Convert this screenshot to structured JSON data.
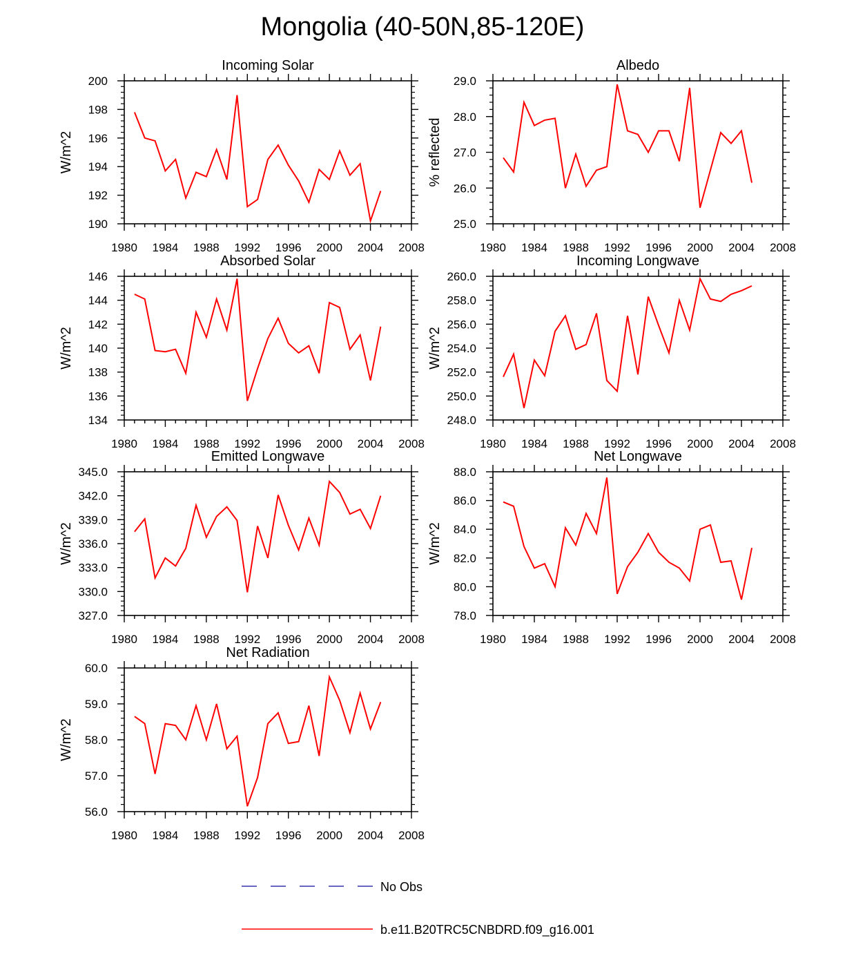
{
  "title": "Mongolia (40-50N,85-120E)",
  "colors": {
    "model_line": "#ff0000",
    "obs_line": "#3333aa",
    "axis": "#000000"
  },
  "legend": [
    {
      "label": "No Obs",
      "style": "dashed",
      "color": "#3333aa"
    },
    {
      "label": "b.e11.B20TRC5CNBDRD.f09_g16.001",
      "style": "solid",
      "color": "#ff0000"
    }
  ],
  "chart_data": [
    {
      "type": "line",
      "title": "Incoming Solar",
      "ylabel": "W/m^2",
      "xlim": [
        1980,
        2008
      ],
      "ylim": [
        190,
        200
      ],
      "xticks": [
        "1980",
        "1984",
        "1988",
        "1992",
        "1996",
        "2000",
        "2004",
        "2008"
      ],
      "yticks": [
        "190",
        "192",
        "194",
        "196",
        "198",
        "200"
      ],
      "x": [
        1981,
        1982,
        1983,
        1984,
        1985,
        1986,
        1987,
        1988,
        1989,
        1990,
        1991,
        1992,
        1993,
        1994,
        1995,
        1996,
        1997,
        1998,
        1999,
        2000,
        2001,
        2002,
        2003,
        2004,
        2005
      ],
      "series": [
        {
          "name": "b.e11.B20TRC5CNBDRD.f09_g16.001",
          "values": [
            197.8,
            196.0,
            195.8,
            193.7,
            194.5,
            191.8,
            193.6,
            193.3,
            195.2,
            193.1,
            199.0,
            191.2,
            191.7,
            194.5,
            195.5,
            194.1,
            193.0,
            191.5,
            193.8,
            193.1,
            195.1,
            193.4,
            194.2,
            190.2,
            192.3
          ]
        }
      ]
    },
    {
      "type": "line",
      "title": "Albedo",
      "ylabel": "% reflected",
      "xlim": [
        1980,
        2008
      ],
      "ylim": [
        25.0,
        29.0
      ],
      "xticks": [
        "1980",
        "1984",
        "1988",
        "1992",
        "1996",
        "2000",
        "2004",
        "2008"
      ],
      "yticks": [
        "25.0",
        "26.0",
        "27.0",
        "28.0",
        "29.0"
      ],
      "x": [
        1981,
        1982,
        1983,
        1984,
        1985,
        1986,
        1987,
        1988,
        1989,
        1990,
        1991,
        1992,
        1993,
        1994,
        1995,
        1996,
        1997,
        1998,
        1999,
        2000,
        2001,
        2002,
        2003,
        2004,
        2005
      ],
      "series": [
        {
          "name": "b.e11.B20TRC5CNBDRD.f09_g16.001",
          "values": [
            26.85,
            26.45,
            28.4,
            27.75,
            27.9,
            27.95,
            26.0,
            26.95,
            26.05,
            26.5,
            26.6,
            28.9,
            27.6,
            27.5,
            27.0,
            27.6,
            27.6,
            26.75,
            28.8,
            25.45,
            26.5,
            27.55,
            27.25,
            27.6,
            26.15
          ]
        }
      ]
    },
    {
      "type": "line",
      "title": "Absorbed Solar",
      "ylabel": "W/m^2",
      "xlim": [
        1980,
        2008
      ],
      "ylim": [
        134,
        146
      ],
      "xticks": [
        "1980",
        "1984",
        "1988",
        "1992",
        "1996",
        "2000",
        "2004",
        "2008"
      ],
      "yticks": [
        "134",
        "136",
        "138",
        "140",
        "142",
        "144",
        "146"
      ],
      "x": [
        1981,
        1982,
        1983,
        1984,
        1985,
        1986,
        1987,
        1988,
        1989,
        1990,
        1991,
        1992,
        1993,
        1994,
        1995,
        1996,
        1997,
        1998,
        1999,
        2000,
        2001,
        2002,
        2003,
        2004,
        2005
      ],
      "series": [
        {
          "name": "b.e11.B20TRC5CNBDRD.f09_g16.001",
          "values": [
            144.5,
            144.1,
            139.8,
            139.7,
            139.9,
            137.9,
            143.0,
            140.9,
            144.1,
            141.5,
            145.8,
            135.6,
            138.3,
            140.8,
            142.5,
            140.4,
            139.6,
            140.2,
            137.9,
            143.8,
            143.4,
            139.9,
            141.1,
            137.3,
            141.8
          ]
        }
      ]
    },
    {
      "type": "line",
      "title": "Incoming Longwave",
      "ylabel": "W/m^2",
      "xlim": [
        1980,
        2008
      ],
      "ylim": [
        248.0,
        260.0
      ],
      "xticks": [
        "1980",
        "1984",
        "1988",
        "1992",
        "1996",
        "2000",
        "2004",
        "2008"
      ],
      "yticks": [
        "248.0",
        "250.0",
        "252.0",
        "254.0",
        "256.0",
        "258.0",
        "260.0"
      ],
      "x": [
        1981,
        1982,
        1983,
        1984,
        1985,
        1986,
        1987,
        1988,
        1989,
        1990,
        1991,
        1992,
        1993,
        1994,
        1995,
        1996,
        1997,
        1998,
        1999,
        2000,
        2001,
        2002,
        2003,
        2004,
        2005
      ],
      "series": [
        {
          "name": "b.e11.B20TRC5CNBDRD.f09_g16.001",
          "values": [
            251.6,
            253.5,
            249.0,
            253.0,
            251.7,
            255.4,
            256.7,
            253.9,
            254.3,
            256.9,
            251.3,
            250.4,
            256.7,
            251.8,
            258.3,
            255.9,
            253.6,
            258.0,
            255.5,
            259.8,
            258.1,
            257.9,
            258.5,
            258.8,
            259.2
          ]
        }
      ]
    },
    {
      "type": "line",
      "title": "Emitted Longwave",
      "ylabel": "W/m^2",
      "xlim": [
        1980,
        2008
      ],
      "ylim": [
        327.0,
        345.0
      ],
      "xticks": [
        "1980",
        "1984",
        "1988",
        "1992",
        "1996",
        "2000",
        "2004",
        "2008"
      ],
      "yticks": [
        "327.0",
        "330.0",
        "333.0",
        "336.0",
        "339.0",
        "342.0",
        "345.0"
      ],
      "x": [
        1981,
        1982,
        1983,
        1984,
        1985,
        1986,
        1987,
        1988,
        1989,
        1990,
        1991,
        1992,
        1993,
        1994,
        1995,
        1996,
        1997,
        1998,
        1999,
        2000,
        2001,
        2002,
        2003,
        2004,
        2005
      ],
      "series": [
        {
          "name": "b.e11.B20TRC5CNBDRD.f09_g16.001",
          "values": [
            337.5,
            339.1,
            331.7,
            334.2,
            333.2,
            335.4,
            340.8,
            336.8,
            339.4,
            340.6,
            338.9,
            329.9,
            338.2,
            334.2,
            342.1,
            338.3,
            335.2,
            339.2,
            335.8,
            343.8,
            342.4,
            339.7,
            340.3,
            337.9,
            342.0
          ]
        }
      ]
    },
    {
      "type": "line",
      "title": "Net Longwave",
      "ylabel": "W/m^2",
      "xlim": [
        1980,
        2008
      ],
      "ylim": [
        78.0,
        88.0
      ],
      "xticks": [
        "1980",
        "1984",
        "1988",
        "1992",
        "1996",
        "2000",
        "2004",
        "2008"
      ],
      "yticks": [
        "78.0",
        "80.0",
        "82.0",
        "84.0",
        "86.0",
        "88.0"
      ],
      "x": [
        1981,
        1982,
        1983,
        1984,
        1985,
        1986,
        1987,
        1988,
        1989,
        1990,
        1991,
        1992,
        1993,
        1994,
        1995,
        1996,
        1997,
        1998,
        1999,
        2000,
        2001,
        2002,
        2003,
        2004,
        2005
      ],
      "series": [
        {
          "name": "b.e11.B20TRC5CNBDRD.f09_g16.001",
          "values": [
            85.9,
            85.6,
            82.8,
            81.3,
            81.6,
            80.0,
            84.1,
            82.9,
            85.1,
            83.7,
            87.6,
            79.5,
            81.4,
            82.4,
            83.7,
            82.4,
            81.7,
            81.3,
            80.4,
            84.0,
            84.3,
            81.7,
            81.8,
            79.1,
            82.7
          ]
        }
      ]
    },
    {
      "type": "line",
      "title": "Net Radiation",
      "ylabel": "W/m^2",
      "xlim": [
        1980,
        2008
      ],
      "ylim": [
        56.0,
        60.0
      ],
      "xticks": [
        "1980",
        "1984",
        "1988",
        "1992",
        "1996",
        "2000",
        "2004",
        "2008"
      ],
      "yticks": [
        "56.0",
        "57.0",
        "58.0",
        "59.0",
        "60.0"
      ],
      "x": [
        1981,
        1982,
        1983,
        1984,
        1985,
        1986,
        1987,
        1988,
        1989,
        1990,
        1991,
        1992,
        1993,
        1994,
        1995,
        1996,
        1997,
        1998,
        1999,
        2000,
        2001,
        2002,
        2003,
        2004,
        2005
      ],
      "series": [
        {
          "name": "b.e11.B20TRC5CNBDRD.f09_g16.001",
          "values": [
            58.65,
            58.45,
            57.05,
            58.45,
            58.4,
            58.0,
            58.95,
            58.0,
            59.0,
            57.75,
            58.1,
            56.15,
            56.95,
            58.45,
            58.75,
            57.9,
            57.95,
            58.95,
            57.55,
            59.75,
            59.1,
            58.2,
            59.3,
            58.3,
            59.05
          ]
        }
      ]
    }
  ]
}
